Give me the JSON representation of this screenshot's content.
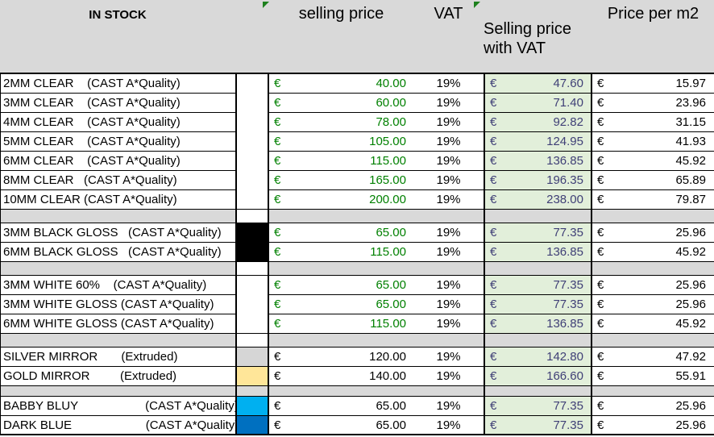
{
  "currency": "€",
  "header": {
    "in_stock": "IN STOCK",
    "selling_price": "selling price",
    "vat": "VAT",
    "selling_price_with_vat_line1": "Selling  price",
    "selling_price_with_vat_line2": "with VAT",
    "price_per_m2": "Price per m2"
  },
  "colors": {
    "header_gray": "#d9d9d9",
    "separator_gray": "#d9d9d9",
    "with_vat_fill": "#e2efda",
    "with_vat_text": "#3f3f76",
    "selling_price_green": "#008000",
    "indicator_green": "#1d801d",
    "swatch_black": "#000000",
    "swatch_white": "#ffffff",
    "swatch_silver": "#d6d6d6",
    "swatch_gold": "#ffe699",
    "swatch_baby_blue": "#00b0f0",
    "swatch_dark_blue": "#0070c0"
  },
  "rows": [
    {
      "type": "item",
      "name": "2MM CLEAR    (CAST A*Quality)",
      "swatch": "#ffffff",
      "merge": true,
      "green": true,
      "price": "40.00",
      "vat": "19%",
      "with_vat": "47.60",
      "per_m2": "15.97"
    },
    {
      "type": "item",
      "name": "3MM CLEAR    (CAST A*Quality)",
      "swatch": "#ffffff",
      "merge": true,
      "green": true,
      "price": "60.00",
      "vat": "19%",
      "with_vat": "71.40",
      "per_m2": "23.96"
    },
    {
      "type": "item",
      "name": "4MM CLEAR    (CAST A*Quality)",
      "swatch": "#ffffff",
      "merge": true,
      "green": true,
      "price": "78.00",
      "vat": "19%",
      "with_vat": "92.82",
      "per_m2": "31.15"
    },
    {
      "type": "item",
      "name": "5MM CLEAR    (CAST A*Quality)",
      "swatch": "#ffffff",
      "merge": true,
      "green": true,
      "price": "105.00",
      "vat": "19%",
      "with_vat": "124.95",
      "per_m2": "41.93"
    },
    {
      "type": "item",
      "name": "6MM CLEAR    (CAST A*Quality)",
      "swatch": "#ffffff",
      "merge": true,
      "green": true,
      "price": "115.00",
      "vat": "19%",
      "with_vat": "136.85",
      "per_m2": "45.92"
    },
    {
      "type": "item",
      "name": "8MM CLEAR   (CAST A*Quality)",
      "swatch": "#ffffff",
      "merge": true,
      "green": true,
      "price": "165.00",
      "vat": "19%",
      "with_vat": "196.35",
      "per_m2": "65.89"
    },
    {
      "type": "item",
      "name": "10MM CLEAR (CAST A*Quality)",
      "swatch": "#ffffff",
      "merge": false,
      "green": true,
      "price": "200.00",
      "vat": "19%",
      "with_vat": "238.00",
      "per_m2": "79.87"
    },
    {
      "type": "separator",
      "swatch": "#ffffff",
      "thin": false
    },
    {
      "type": "item",
      "name": "3MM BLACK GLOSS   (CAST A*Quality)",
      "swatch": "#000000",
      "merge": true,
      "green": true,
      "price": "65.00",
      "vat": "19%",
      "with_vat": "77.35",
      "per_m2": "25.96"
    },
    {
      "type": "item",
      "name": "6MM BLACK GLOSS   (CAST A*Quality)",
      "swatch": "#000000",
      "merge": false,
      "green": true,
      "price": "115.00",
      "vat": "19%",
      "with_vat": "136.85",
      "per_m2": "45.92"
    },
    {
      "type": "separator",
      "swatch": "#ffffff",
      "thin": false
    },
    {
      "type": "item",
      "name": "3MM WHITE 60%    (CAST A*Quality)",
      "swatch": "#ffffff",
      "merge": true,
      "green": true,
      "price": "65.00",
      "vat": "19%",
      "with_vat": "77.35",
      "per_m2": "25.96"
    },
    {
      "type": "item",
      "name": "3MM WHITE GLOSS (CAST A*Quality)",
      "swatch": "#ffffff",
      "merge": true,
      "green": true,
      "price": "65.00",
      "vat": "19%",
      "with_vat": "77.35",
      "per_m2": "25.96"
    },
    {
      "type": "item",
      "name": "6MM WHITE GLOSS (CAST A*Quality)",
      "swatch": "#ffffff",
      "merge": false,
      "green": true,
      "price": "115.00",
      "vat": "19%",
      "with_vat": "136.85",
      "per_m2": "45.92"
    },
    {
      "type": "separator",
      "swatch": "#ffffff",
      "thin": false
    },
    {
      "type": "item",
      "name": "SILVER MIRROR       (Extruded)",
      "swatch": "#d6d6d6",
      "merge": false,
      "green": false,
      "price": "120.00",
      "vat": "19%",
      "with_vat": "142.80",
      "per_m2": "47.92"
    },
    {
      "type": "item",
      "name": "GOLD MIRROR         (Extruded)",
      "swatch": "#ffe699",
      "merge": false,
      "green": false,
      "price": "140.00",
      "vat": "19%",
      "with_vat": "166.60",
      "per_m2": "55.91"
    },
    {
      "type": "separator",
      "swatch": "#d9d9d9",
      "thin": true
    },
    {
      "type": "item",
      "name": "BABBY BLUY                    (CAST A*Quality)",
      "swatch": "#00b0f0",
      "merge": false,
      "green": false,
      "price": "65.00",
      "vat": "19%",
      "with_vat": "77.35",
      "per_m2": "25.96"
    },
    {
      "type": "item",
      "name": "DARK BLUE                      (CAST A*Quality)",
      "swatch": "#0070c0",
      "merge": false,
      "green": false,
      "price": "65.00",
      "vat": "19%",
      "with_vat": "77.35",
      "per_m2": "25.96"
    }
  ]
}
